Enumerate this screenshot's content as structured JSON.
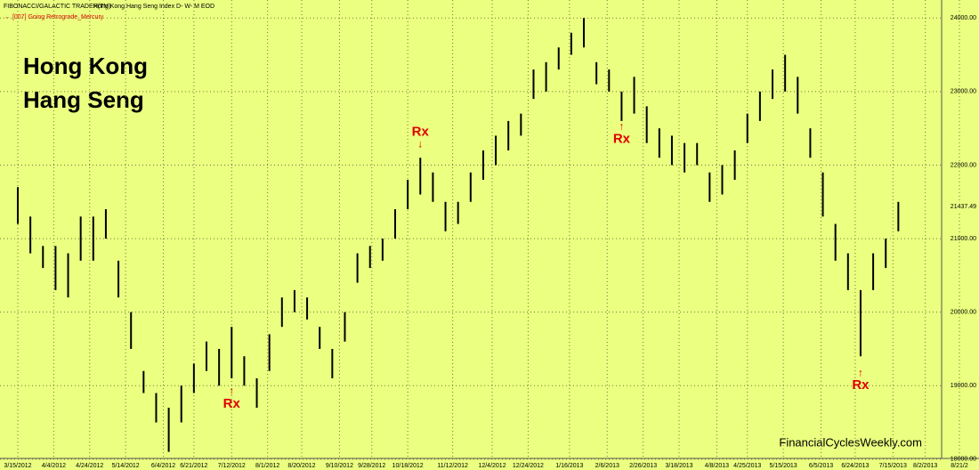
{
  "chart_data": {
    "type": "ohlc",
    "header": "FIBONACCI/GALACTIC TRADER(TM)",
    "subtitle": "Hong Kong Hang Seng Index D- W- M EOD",
    "indicator": "[007] Going Retrograde_Mercury",
    "title": [
      "Hong Kong",
      "Hang Seng"
    ],
    "watermark": "FinancialCyclesWeekly.com",
    "color": "#000000",
    "background": "#ebff80",
    "xlim": [
      "3/15/2012",
      "8/21/2013"
    ],
    "xticks": [
      "3/15/2012",
      "4/4/2012",
      "4/24/2012",
      "5/14/2012",
      "6/4/2012",
      "6/21/2012",
      "7/12/2012",
      "8/1/2012",
      "8/20/2012",
      "9/10/2012",
      "9/28/2012",
      "10/18/2012",
      "11/12/2012",
      "12/4/2012",
      "12/24/2012",
      "1/16/2013",
      "2/6/2013",
      "2/26/2013",
      "3/18/2013",
      "4/8/2013",
      "4/25/2013",
      "5/15/2013",
      "6/5/2013",
      "6/24/2013",
      "7/15/2013",
      "8/2/2013",
      {
        "value": "8/21/2013",
        "label": "8/21/2"
      }
    ],
    "ylim": [
      17950,
      24100
    ],
    "yticks": [
      {
        "value": 18000,
        "label": "18000.00"
      },
      {
        "value": 19000,
        "label": "19000.00"
      },
      {
        "value": 20000,
        "label": "20000.00"
      },
      {
        "value": 21000,
        "label": "21000.00"
      },
      {
        "value": 22000,
        "label": "22000.00"
      },
      {
        "value": 23000,
        "label": "23000.00"
      },
      {
        "value": 24000,
        "label": "24000.00"
      }
    ],
    "grid": true,
    "last_value": 21437.49,
    "x": [
      "3/15/2012",
      "3/22/2012",
      "3/29/2012",
      "4/5/2012",
      "4/12/2012",
      "4/19/2012",
      "4/26/2012",
      "5/3/2012",
      "5/10/2012",
      "5/17/2012",
      "5/24/2012",
      "5/31/2012",
      "6/7/2012",
      "6/14/2012",
      "6/21/2012",
      "6/28/2012",
      "7/5/2012",
      "7/12/2012",
      "7/19/2012",
      "7/26/2012",
      "8/2/2012",
      "8/9/2012",
      "8/16/2012",
      "8/23/2012",
      "8/30/2012",
      "9/6/2012",
      "9/13/2012",
      "9/20/2012",
      "9/27/2012",
      "10/4/2012",
      "10/11/2012",
      "10/18/2012",
      "10/25/2012",
      "11/1/2012",
      "11/8/2012",
      "11/15/2012",
      "11/22/2012",
      "11/29/2012",
      "12/6/2012",
      "12/13/2012",
      "12/20/2012",
      "12/27/2012",
      "1/3/2013",
      "1/10/2013",
      "1/17/2013",
      "1/24/2013",
      "1/31/2013",
      "2/7/2013",
      "2/14/2013",
      "2/21/2013",
      "2/28/2013",
      "3/7/2013",
      "3/14/2013",
      "3/21/2013",
      "3/28/2013",
      "4/4/2013",
      "4/11/2013",
      "4/18/2013",
      "4/25/2013",
      "5/2/2013",
      "5/9/2013",
      "5/16/2013",
      "5/23/2013",
      "5/30/2013",
      "6/6/2013",
      "6/13/2013",
      "6/20/2013",
      "6/27/2013",
      "7/4/2013",
      "7/11/2013",
      "7/18/2013"
    ],
    "high": [
      21700,
      21300,
      20900,
      20900,
      20800,
      21300,
      21300,
      21400,
      20700,
      20000,
      19200,
      18900,
      18700,
      19000,
      19300,
      19600,
      19500,
      19800,
      19400,
      19100,
      19700,
      20200,
      20300,
      20200,
      19800,
      19500,
      20000,
      20800,
      20900,
      21000,
      21400,
      21800,
      22100,
      21900,
      21500,
      21500,
      21900,
      22200,
      22400,
      22600,
      22700,
      23300,
      23400,
      23600,
      23800,
      24000,
      23400,
      23300,
      23000,
      23200,
      22800,
      22500,
      22400,
      22300,
      22300,
      21900,
      22000,
      22200,
      22700,
      23000,
      23300,
      23500,
      23200,
      22500,
      21900,
      21200,
      20800,
      20300,
      20800,
      21000,
      21500
    ],
    "low": [
      21200,
      20800,
      20600,
      20300,
      20200,
      20700,
      20700,
      21000,
      20200,
      19500,
      18900,
      18500,
      18100,
      18500,
      18900,
      19200,
      19000,
      19100,
      19000,
      18700,
      19200,
      19800,
      20000,
      19900,
      19500,
      19100,
      19600,
      20400,
      20600,
      20700,
      21000,
      21400,
      21600,
      21500,
      21100,
      21200,
      21500,
      21800,
      22000,
      22200,
      22400,
      22900,
      23000,
      23300,
      23500,
      23600,
      23100,
      23000,
      22600,
      22700,
      22300,
      22100,
      22000,
      21900,
      22000,
      21500,
      21600,
      21800,
      22300,
      22600,
      22900,
      23000,
      22700,
      22100,
      21300,
      20700,
      20300,
      19400,
      20300,
      20600,
      21100
    ],
    "annotations": [
      {
        "text": "Rx",
        "x": "7/12/2012",
        "y": 18750,
        "arrow": "up"
      },
      {
        "text": "Rx",
        "x": "10/25/2012",
        "y": 22450,
        "arrow": "down"
      },
      {
        "text": "Rx",
        "x": "2/14/2013",
        "y": 22350,
        "arrow": "up"
      },
      {
        "text": "Rx",
        "x": "6/27/2013",
        "y": 19000,
        "arrow": "up"
      }
    ]
  }
}
